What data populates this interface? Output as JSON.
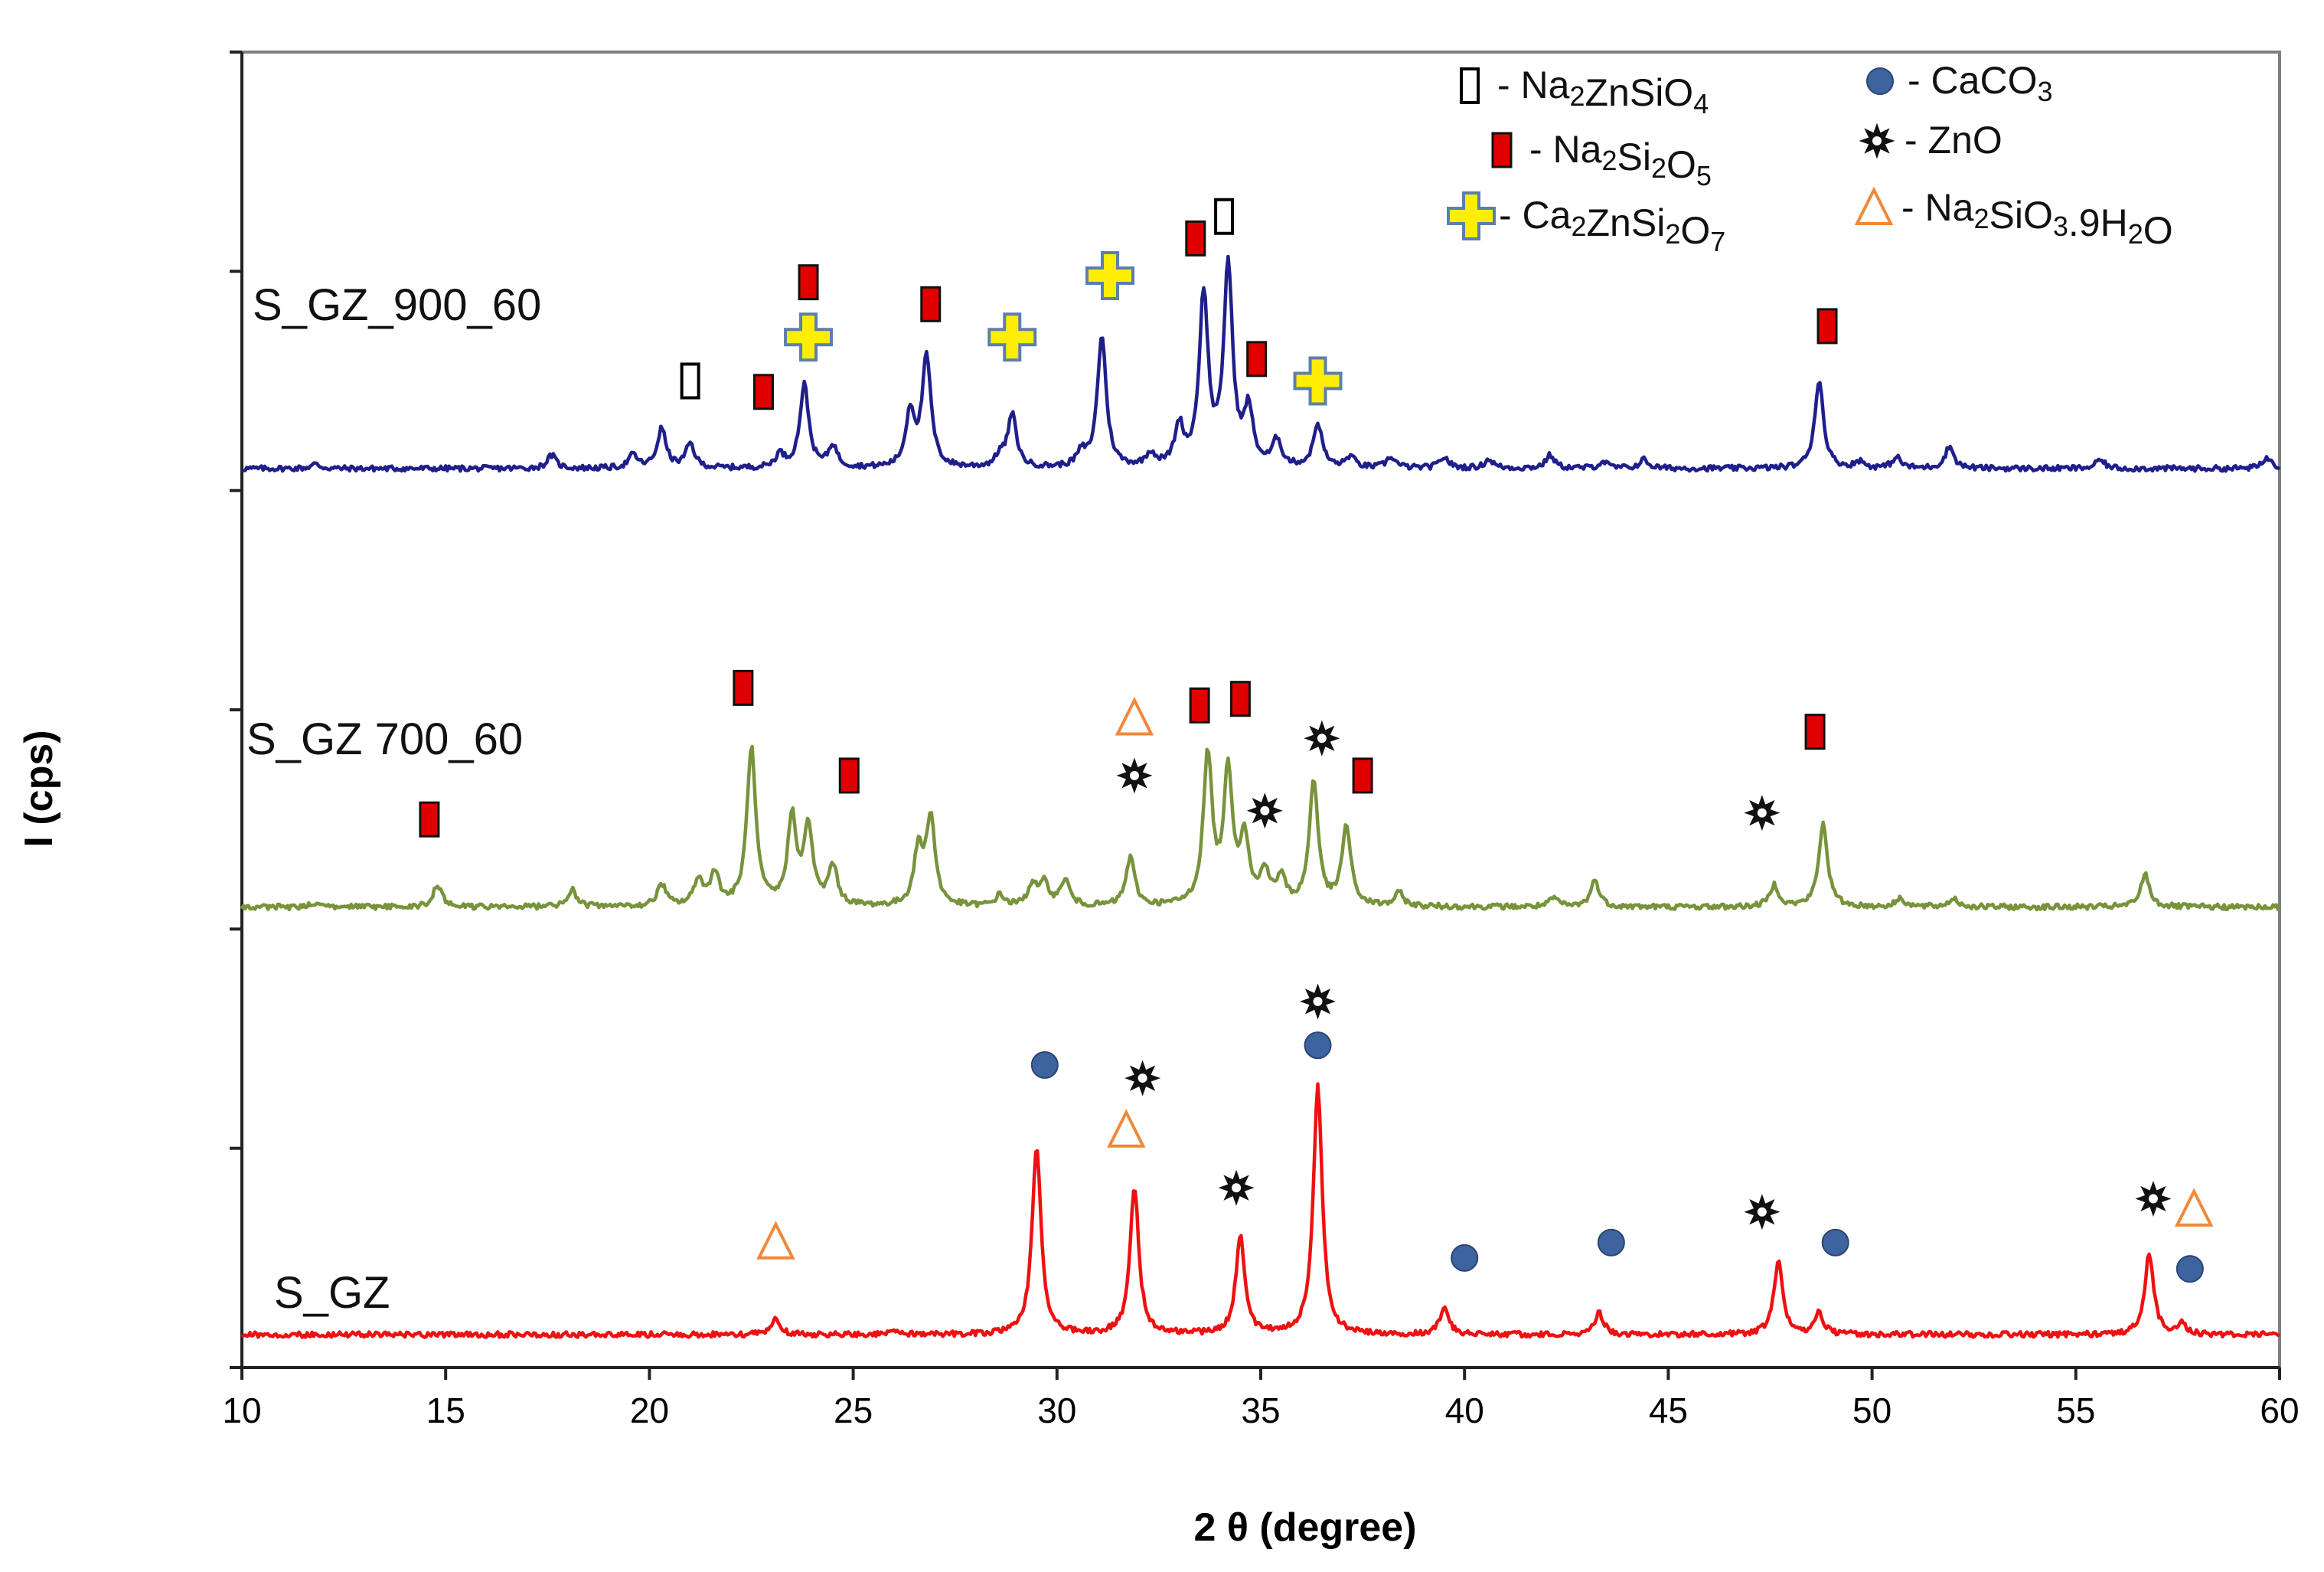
{
  "chart_data": {
    "type": "line",
    "title": "",
    "xlabel": "2 θ (degree)",
    "ylabel": "I (cps)",
    "xlim": [
      10,
      60
    ],
    "xticks": [
      10,
      15,
      20,
      25,
      30,
      35,
      40,
      45,
      50,
      55,
      60
    ],
    "ylim": [
      0,
      6
    ],
    "y_tick_values": [
      0,
      1,
      2,
      3,
      4,
      5,
      6
    ],
    "grid": false,
    "legend_position": "top-right",
    "legend": [
      {
        "marker": "open-rect",
        "label": "Na₂ZnSiO₄",
        "color": "#000000"
      },
      {
        "marker": "red-rect",
        "label": "Na₂Si₂O₅",
        "color": "#e00000"
      },
      {
        "marker": "cross",
        "label": "Ca₂ZnSi₂O₇",
        "color": "#ffee00"
      },
      {
        "marker": "circle",
        "label": "CaCO₃",
        "color": "#3e64a0"
      },
      {
        "marker": "star",
        "label": "ZnO",
        "color": "#000000"
      },
      {
        "marker": "triangle",
        "label": "Na₂SiO₃.9H₂O",
        "color": "#f0883a"
      }
    ],
    "series": [
      {
        "name": "S_GZ_900_60",
        "label": "S_GZ_900_60",
        "color": "#1f1f8c",
        "baseline": 4.1,
        "peaks": [
          [
            11.8,
            0.02
          ],
          [
            17.6,
            0.06
          ],
          [
            19.6,
            0.06
          ],
          [
            20.3,
            0.18
          ],
          [
            21.0,
            0.11
          ],
          [
            23.2,
            0.06
          ],
          [
            23.8,
            0.38
          ],
          [
            24.5,
            0.1
          ],
          [
            26.4,
            0.25
          ],
          [
            26.8,
            0.5
          ],
          [
            28.6,
            0.05
          ],
          [
            28.9,
            0.24
          ],
          [
            30.6,
            0.06
          ],
          [
            31.1,
            0.6
          ],
          [
            32.3,
            0.06
          ],
          [
            33.0,
            0.18
          ],
          [
            33.6,
            0.78
          ],
          [
            34.2,
            0.91
          ],
          [
            34.7,
            0.25
          ],
          [
            35.4,
            0.12
          ],
          [
            36.4,
            0.2
          ],
          [
            37.2,
            0.05
          ],
          [
            38.2,
            0.05
          ],
          [
            39.5,
            0.05
          ],
          [
            40.6,
            0.04
          ],
          [
            42.1,
            0.06
          ],
          [
            43.4,
            0.03
          ],
          [
            44.4,
            0.04
          ],
          [
            48.7,
            0.4
          ],
          [
            49.7,
            0.03
          ],
          [
            50.6,
            0.05
          ],
          [
            51.9,
            0.1
          ],
          [
            55.6,
            0.04
          ],
          [
            59.7,
            0.05
          ]
        ]
      },
      {
        "name": "S_GZ 700_60",
        "label": "S_GZ 700_60",
        "color": "#77933c",
        "baseline": 2.1,
        "peaks": [
          [
            11.8,
            0.02
          ],
          [
            14.8,
            0.1
          ],
          [
            18.1,
            0.08
          ],
          [
            20.3,
            0.1
          ],
          [
            21.2,
            0.12
          ],
          [
            21.6,
            0.15
          ],
          [
            22.5,
            0.72
          ],
          [
            23.5,
            0.4
          ],
          [
            23.9,
            0.35
          ],
          [
            24.5,
            0.18
          ],
          [
            26.6,
            0.25
          ],
          [
            26.9,
            0.4
          ],
          [
            28.6,
            0.05
          ],
          [
            29.4,
            0.1
          ],
          [
            29.7,
            0.1
          ],
          [
            30.2,
            0.12
          ],
          [
            31.8,
            0.22
          ],
          [
            33.7,
            0.68
          ],
          [
            34.2,
            0.6
          ],
          [
            34.6,
            0.3
          ],
          [
            35.1,
            0.15
          ],
          [
            35.5,
            0.12
          ],
          [
            36.3,
            0.57
          ],
          [
            37.1,
            0.36
          ],
          [
            38.4,
            0.06
          ],
          [
            42.2,
            0.04
          ],
          [
            43.2,
            0.12
          ],
          [
            47.6,
            0.1
          ],
          [
            48.8,
            0.38
          ],
          [
            50.7,
            0.04
          ],
          [
            52.0,
            0.04
          ],
          [
            56.7,
            0.15
          ]
        ]
      },
      {
        "name": "S_GZ",
        "label": "S_GZ",
        "color": "#ee1111",
        "baseline": 0.15,
        "peaks": [
          [
            23.1,
            0.07
          ],
          [
            26.0,
            0.02
          ],
          [
            29.5,
            0.86
          ],
          [
            31.9,
            0.67
          ],
          [
            34.5,
            0.45
          ],
          [
            36.4,
            1.13
          ],
          [
            39.5,
            0.12
          ],
          [
            43.3,
            0.1
          ],
          [
            47.7,
            0.33
          ],
          [
            48.7,
            0.1
          ],
          [
            56.8,
            0.37
          ],
          [
            57.6,
            0.05
          ]
        ]
      }
    ],
    "annotations": [
      {
        "series": "S_GZ_900_60",
        "marker": "open-rect",
        "x": 21.0,
        "y": 4.5
      },
      {
        "series": "S_GZ_900_60",
        "marker": "red-rect",
        "x": 22.8,
        "y": 4.45
      },
      {
        "series": "S_GZ_900_60",
        "marker": "cross",
        "x": 23.9,
        "y": 4.7
      },
      {
        "series": "S_GZ_900_60",
        "marker": "red-rect",
        "x": 23.9,
        "y": 4.95
      },
      {
        "series": "S_GZ_900_60",
        "marker": "red-rect",
        "x": 26.9,
        "y": 4.85
      },
      {
        "series": "S_GZ_900_60",
        "marker": "cross",
        "x": 28.9,
        "y": 4.7
      },
      {
        "series": "S_GZ_900_60",
        "marker": "cross",
        "x": 31.3,
        "y": 4.98
      },
      {
        "series": "S_GZ_900_60",
        "marker": "red-rect",
        "x": 33.4,
        "y": 5.15
      },
      {
        "series": "S_GZ_900_60",
        "marker": "open-rect",
        "x": 34.1,
        "y": 5.25
      },
      {
        "series": "S_GZ_900_60",
        "marker": "red-rect",
        "x": 34.9,
        "y": 4.6
      },
      {
        "series": "S_GZ_900_60",
        "marker": "cross",
        "x": 36.4,
        "y": 4.5
      },
      {
        "series": "S_GZ_900_60",
        "marker": "red-rect",
        "x": 48.9,
        "y": 4.75
      },
      {
        "series": "S_GZ 700_60",
        "marker": "red-rect",
        "x": 14.6,
        "y": 2.5
      },
      {
        "series": "S_GZ 700_60",
        "marker": "red-rect",
        "x": 22.3,
        "y": 3.1
      },
      {
        "series": "S_GZ 700_60",
        "marker": "red-rect",
        "x": 24.9,
        "y": 2.7
      },
      {
        "series": "S_GZ 700_60",
        "marker": "triangle",
        "x": 31.9,
        "y": 2.96
      },
      {
        "series": "S_GZ 700_60",
        "marker": "star",
        "x": 31.9,
        "y": 2.7
      },
      {
        "series": "S_GZ 700_60",
        "marker": "red-rect",
        "x": 33.5,
        "y": 3.02
      },
      {
        "series": "S_GZ 700_60",
        "marker": "red-rect",
        "x": 34.5,
        "y": 3.05
      },
      {
        "series": "S_GZ 700_60",
        "marker": "star",
        "x": 36.5,
        "y": 2.87
      },
      {
        "series": "S_GZ 700_60",
        "marker": "star",
        "x": 35.1,
        "y": 2.54
      },
      {
        "series": "S_GZ 700_60",
        "marker": "red-rect",
        "x": 37.5,
        "y": 2.7
      },
      {
        "series": "S_GZ 700_60",
        "marker": "red-rect",
        "x": 48.6,
        "y": 2.9
      },
      {
        "series": "S_GZ 700_60",
        "marker": "star",
        "x": 47.3,
        "y": 2.53
      },
      {
        "series": "S_GZ",
        "marker": "circle",
        "x": 29.7,
        "y": 1.38
      },
      {
        "series": "S_GZ",
        "marker": "star",
        "x": 32.1,
        "y": 1.32
      },
      {
        "series": "S_GZ",
        "marker": "triangle",
        "x": 31.7,
        "y": 1.08
      },
      {
        "series": "S_GZ",
        "marker": "star",
        "x": 36.4,
        "y": 1.67
      },
      {
        "series": "S_GZ",
        "marker": "circle",
        "x": 36.4,
        "y": 1.47
      },
      {
        "series": "S_GZ",
        "marker": "star",
        "x": 34.4,
        "y": 0.82
      },
      {
        "series": "S_GZ",
        "marker": "triangle",
        "x": 23.1,
        "y": 0.57
      },
      {
        "series": "S_GZ",
        "marker": "circle",
        "x": 40.0,
        "y": 0.5
      },
      {
        "series": "S_GZ",
        "marker": "circle",
        "x": 43.6,
        "y": 0.57
      },
      {
        "series": "S_GZ",
        "marker": "star",
        "x": 47.3,
        "y": 0.71
      },
      {
        "series": "S_GZ",
        "marker": "circle",
        "x": 49.1,
        "y": 0.57
      },
      {
        "series": "S_GZ",
        "marker": "star",
        "x": 56.9,
        "y": 0.77
      },
      {
        "series": "S_GZ",
        "marker": "triangle",
        "x": 57.9,
        "y": 0.72
      },
      {
        "series": "S_GZ",
        "marker": "circle",
        "x": 57.8,
        "y": 0.45
      }
    ]
  }
}
